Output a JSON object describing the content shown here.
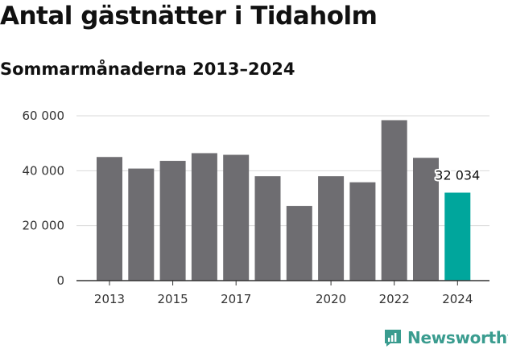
{
  "header": {
    "title": "Antal gästnätter i Tidaholm",
    "subtitle": "Sommarmånaderna 2013–2024"
  },
  "brand": {
    "name": "Newsworthy",
    "icon": "newsworthy-logo-icon",
    "color": "#3a9c8f"
  },
  "colors": {
    "bar": "#6e6d71",
    "highlight": "#00a69c",
    "grid": "#d9d9d9",
    "axis": "#333333"
  },
  "chart_data": {
    "type": "bar",
    "title": "Antal gästnätter i Tidaholm",
    "subtitle": "Sommarmånaderna 2013–2024",
    "categories": [
      "2013",
      "2014",
      "2015",
      "2016",
      "2017",
      "2018",
      "2019",
      "2020",
      "2021",
      "2022",
      "2023",
      "2024"
    ],
    "x_tick_labels": [
      "2013",
      "2015",
      "2017",
      "2020",
      "2022",
      "2024"
    ],
    "values": [
      45000,
      40800,
      43600,
      46400,
      45800,
      38000,
      27200,
      38000,
      35800,
      58400,
      44700,
      32034
    ],
    "highlight_index": 11,
    "annotation": {
      "category": "2024",
      "text": "32 034"
    },
    "y_ticks": [
      0,
      20000,
      40000,
      60000
    ],
    "y_tick_labels": [
      "0",
      "20 000",
      "40 000",
      "60 000"
    ],
    "ylim": [
      0,
      60000
    ],
    "xlabel": "",
    "ylabel": "",
    "grid": true
  }
}
